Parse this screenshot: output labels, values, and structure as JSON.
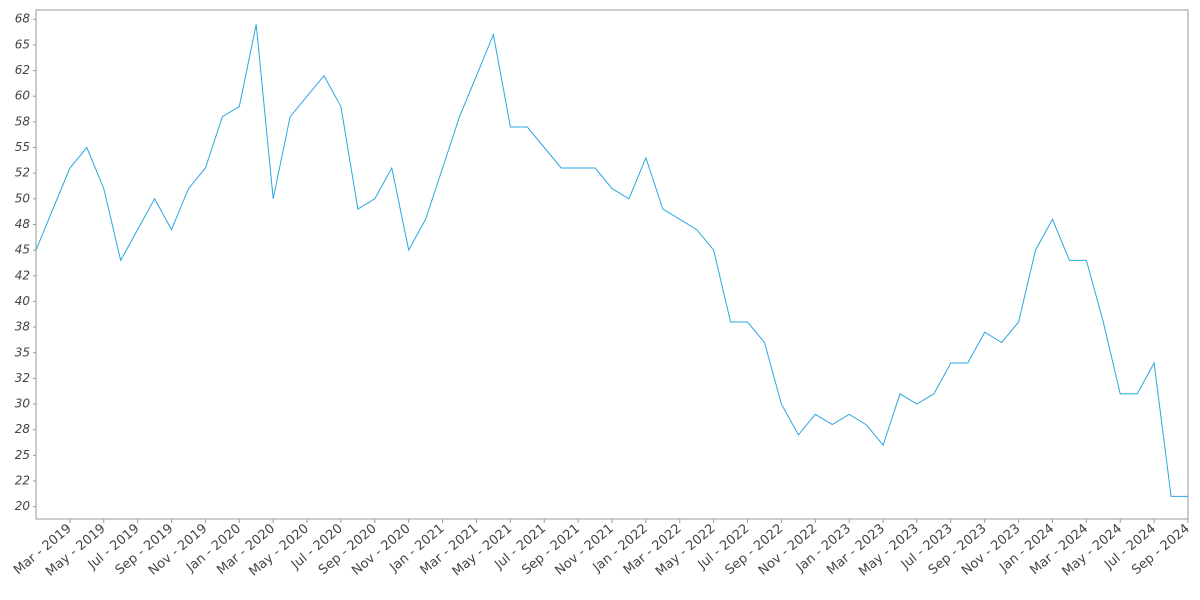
{
  "chart_data": {
    "type": "line",
    "x": [
      "2019-01",
      "2019-02",
      "2019-03",
      "2019-04",
      "2019-05",
      "2019-06",
      "2019-07",
      "2019-08",
      "2019-09",
      "2019-10",
      "2019-11",
      "2019-12",
      "2020-01",
      "2020-02",
      "2020-03",
      "2020-04",
      "2020-05",
      "2020-06",
      "2020-07",
      "2020-08",
      "2020-09",
      "2020-10",
      "2020-11",
      "2020-12",
      "2021-01",
      "2021-02",
      "2021-03",
      "2021-04",
      "2021-05",
      "2021-06",
      "2021-07",
      "2021-08",
      "2021-09",
      "2021-10",
      "2021-11",
      "2021-12",
      "2022-01",
      "2022-02",
      "2022-03",
      "2022-04",
      "2022-05",
      "2022-06",
      "2022-07",
      "2022-08",
      "2022-09",
      "2022-10",
      "2022-11",
      "2022-12",
      "2023-01",
      "2023-02",
      "2023-03",
      "2023-04",
      "2023-05",
      "2023-06",
      "2023-07",
      "2023-08",
      "2023-09",
      "2023-10",
      "2023-11",
      "2023-12",
      "2024-01",
      "2024-02",
      "2024-03",
      "2024-04",
      "2024-05",
      "2024-06",
      "2024-07",
      "2024-08",
      "2024-09"
    ],
    "series": [
      {
        "color": "#29a8e0",
        "values": [
          45,
          49,
          53,
          55,
          51,
          44,
          47,
          50,
          47,
          51,
          53,
          58,
          59,
          67,
          50,
          58,
          60,
          62,
          59,
          49,
          50,
          53,
          45,
          48,
          53,
          58,
          62,
          66,
          57,
          57,
          55,
          53,
          53,
          53,
          51,
          50,
          54,
          49,
          48,
          47,
          45,
          38,
          38,
          36,
          30,
          27,
          29,
          28,
          29,
          28,
          26,
          31,
          30,
          31,
          34,
          34,
          37,
          36,
          38,
          45,
          48,
          44,
          44,
          38,
          31,
          31,
          34,
          21,
          21
        ]
      }
    ],
    "xlim": [
      "2019-01",
      "2024-09"
    ],
    "xticks": [
      {
        "value": "2019-03",
        "label": "Mar - 2019"
      },
      {
        "value": "2019-05",
        "label": "May - 2019"
      },
      {
        "value": "2019-07",
        "label": "Jul - 2019"
      },
      {
        "value": "2019-09",
        "label": "Sep - 2019"
      },
      {
        "value": "2019-11",
        "label": "Nov - 2019"
      },
      {
        "value": "2020-01",
        "label": "Jan - 2020"
      },
      {
        "value": "2020-03",
        "label": "Mar - 2020"
      },
      {
        "value": "2020-05",
        "label": "May - 2020"
      },
      {
        "value": "2020-07",
        "label": "Jul - 2020"
      },
      {
        "value": "2020-09",
        "label": "Sep - 2020"
      },
      {
        "value": "2020-11",
        "label": "Nov - 2020"
      },
      {
        "value": "2021-01",
        "label": "Jan - 2021"
      },
      {
        "value": "2021-03",
        "label": "Mar - 2021"
      },
      {
        "value": "2021-05",
        "label": "May - 2021"
      },
      {
        "value": "2021-07",
        "label": "Jul - 2021"
      },
      {
        "value": "2021-09",
        "label": "Sep - 2021"
      },
      {
        "value": "2021-11",
        "label": "Nov - 2021"
      },
      {
        "value": "2022-01",
        "label": "Jan - 2022"
      },
      {
        "value": "2022-03",
        "label": "Mar - 2022"
      },
      {
        "value": "2022-05",
        "label": "May - 2022"
      },
      {
        "value": "2022-07",
        "label": "Jul - 2022"
      },
      {
        "value": "2022-09",
        "label": "Sep - 2022"
      },
      {
        "value": "2022-11",
        "label": "Nov - 2022"
      },
      {
        "value": "2023-01",
        "label": "Jan - 2023"
      },
      {
        "value": "2023-03",
        "label": "Mar - 2023"
      },
      {
        "value": "2023-05",
        "label": "May - 2023"
      },
      {
        "value": "2023-07",
        "label": "Jul - 2023"
      },
      {
        "value": "2023-09",
        "label": "Sep - 2023"
      },
      {
        "value": "2023-11",
        "label": "Nov - 2023"
      },
      {
        "value": "2024-01",
        "label": "Jan - 2024"
      },
      {
        "value": "2024-03",
        "label": "Mar - 2024"
      },
      {
        "value": "2024-05",
        "label": "May - 2024"
      },
      {
        "value": "2024-07",
        "label": "Jul - 2024"
      },
      {
        "value": "2024-09",
        "label": "Sep - 2024"
      }
    ],
    "ylim": [
      18.8,
      68.4
    ],
    "yticks": [
      20,
      {
        "value": 22.5,
        "label": "22"
      },
      25,
      {
        "value": 27.5,
        "label": "28"
      },
      30,
      {
        "value": 32.5,
        "label": "32"
      },
      35,
      {
        "value": 37.5,
        "label": "38"
      },
      40,
      {
        "value": 42.5,
        "label": "42"
      },
      45,
      {
        "value": 47.5,
        "label": "48"
      },
      50,
      {
        "value": 52.5,
        "label": "52"
      },
      55,
      {
        "value": 57.5,
        "label": "58"
      },
      60,
      {
        "value": 62.5,
        "label": "62"
      },
      65,
      {
        "value": 67.5,
        "label": "68"
      }
    ],
    "grid": false
  }
}
